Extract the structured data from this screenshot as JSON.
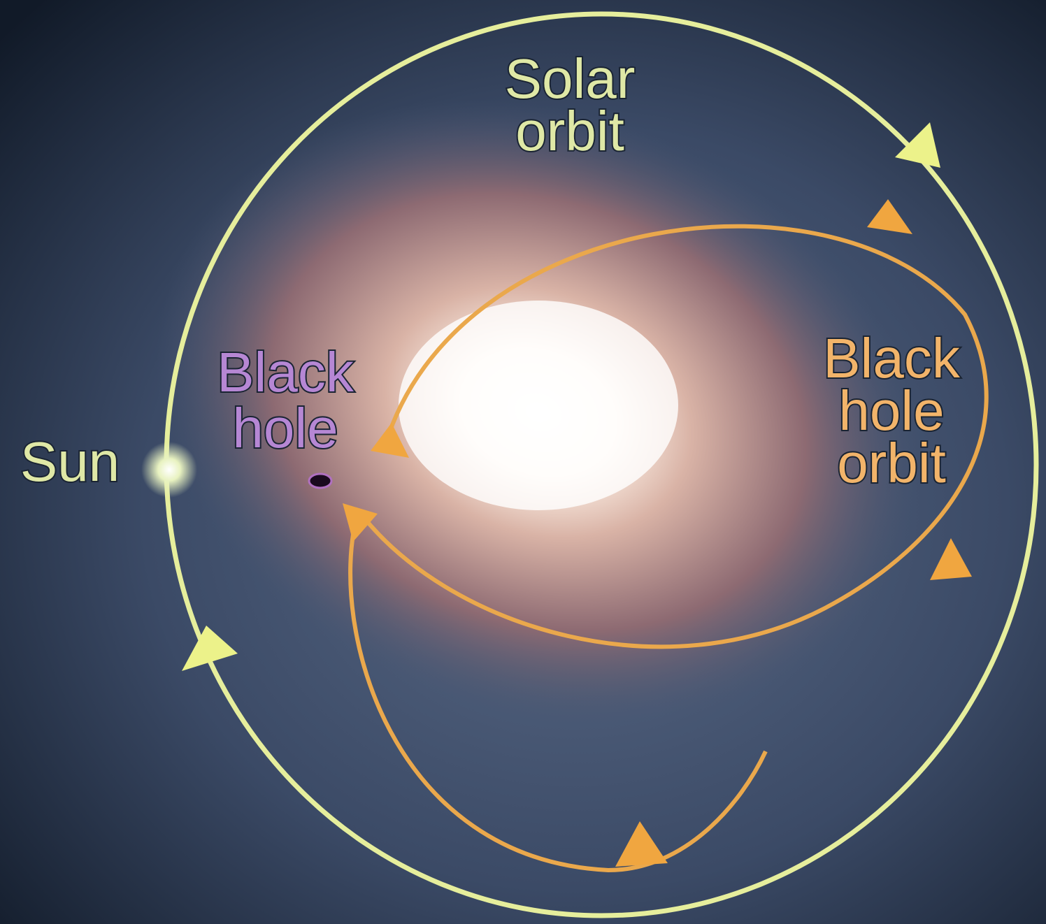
{
  "labels": {
    "solar_orbit": [
      "Solar",
      "orbit"
    ],
    "black_hole_orbit": [
      "Black",
      "hole",
      "orbit"
    ],
    "black_hole": [
      "Black",
      "hole"
    ],
    "sun": "Sun"
  }
}
